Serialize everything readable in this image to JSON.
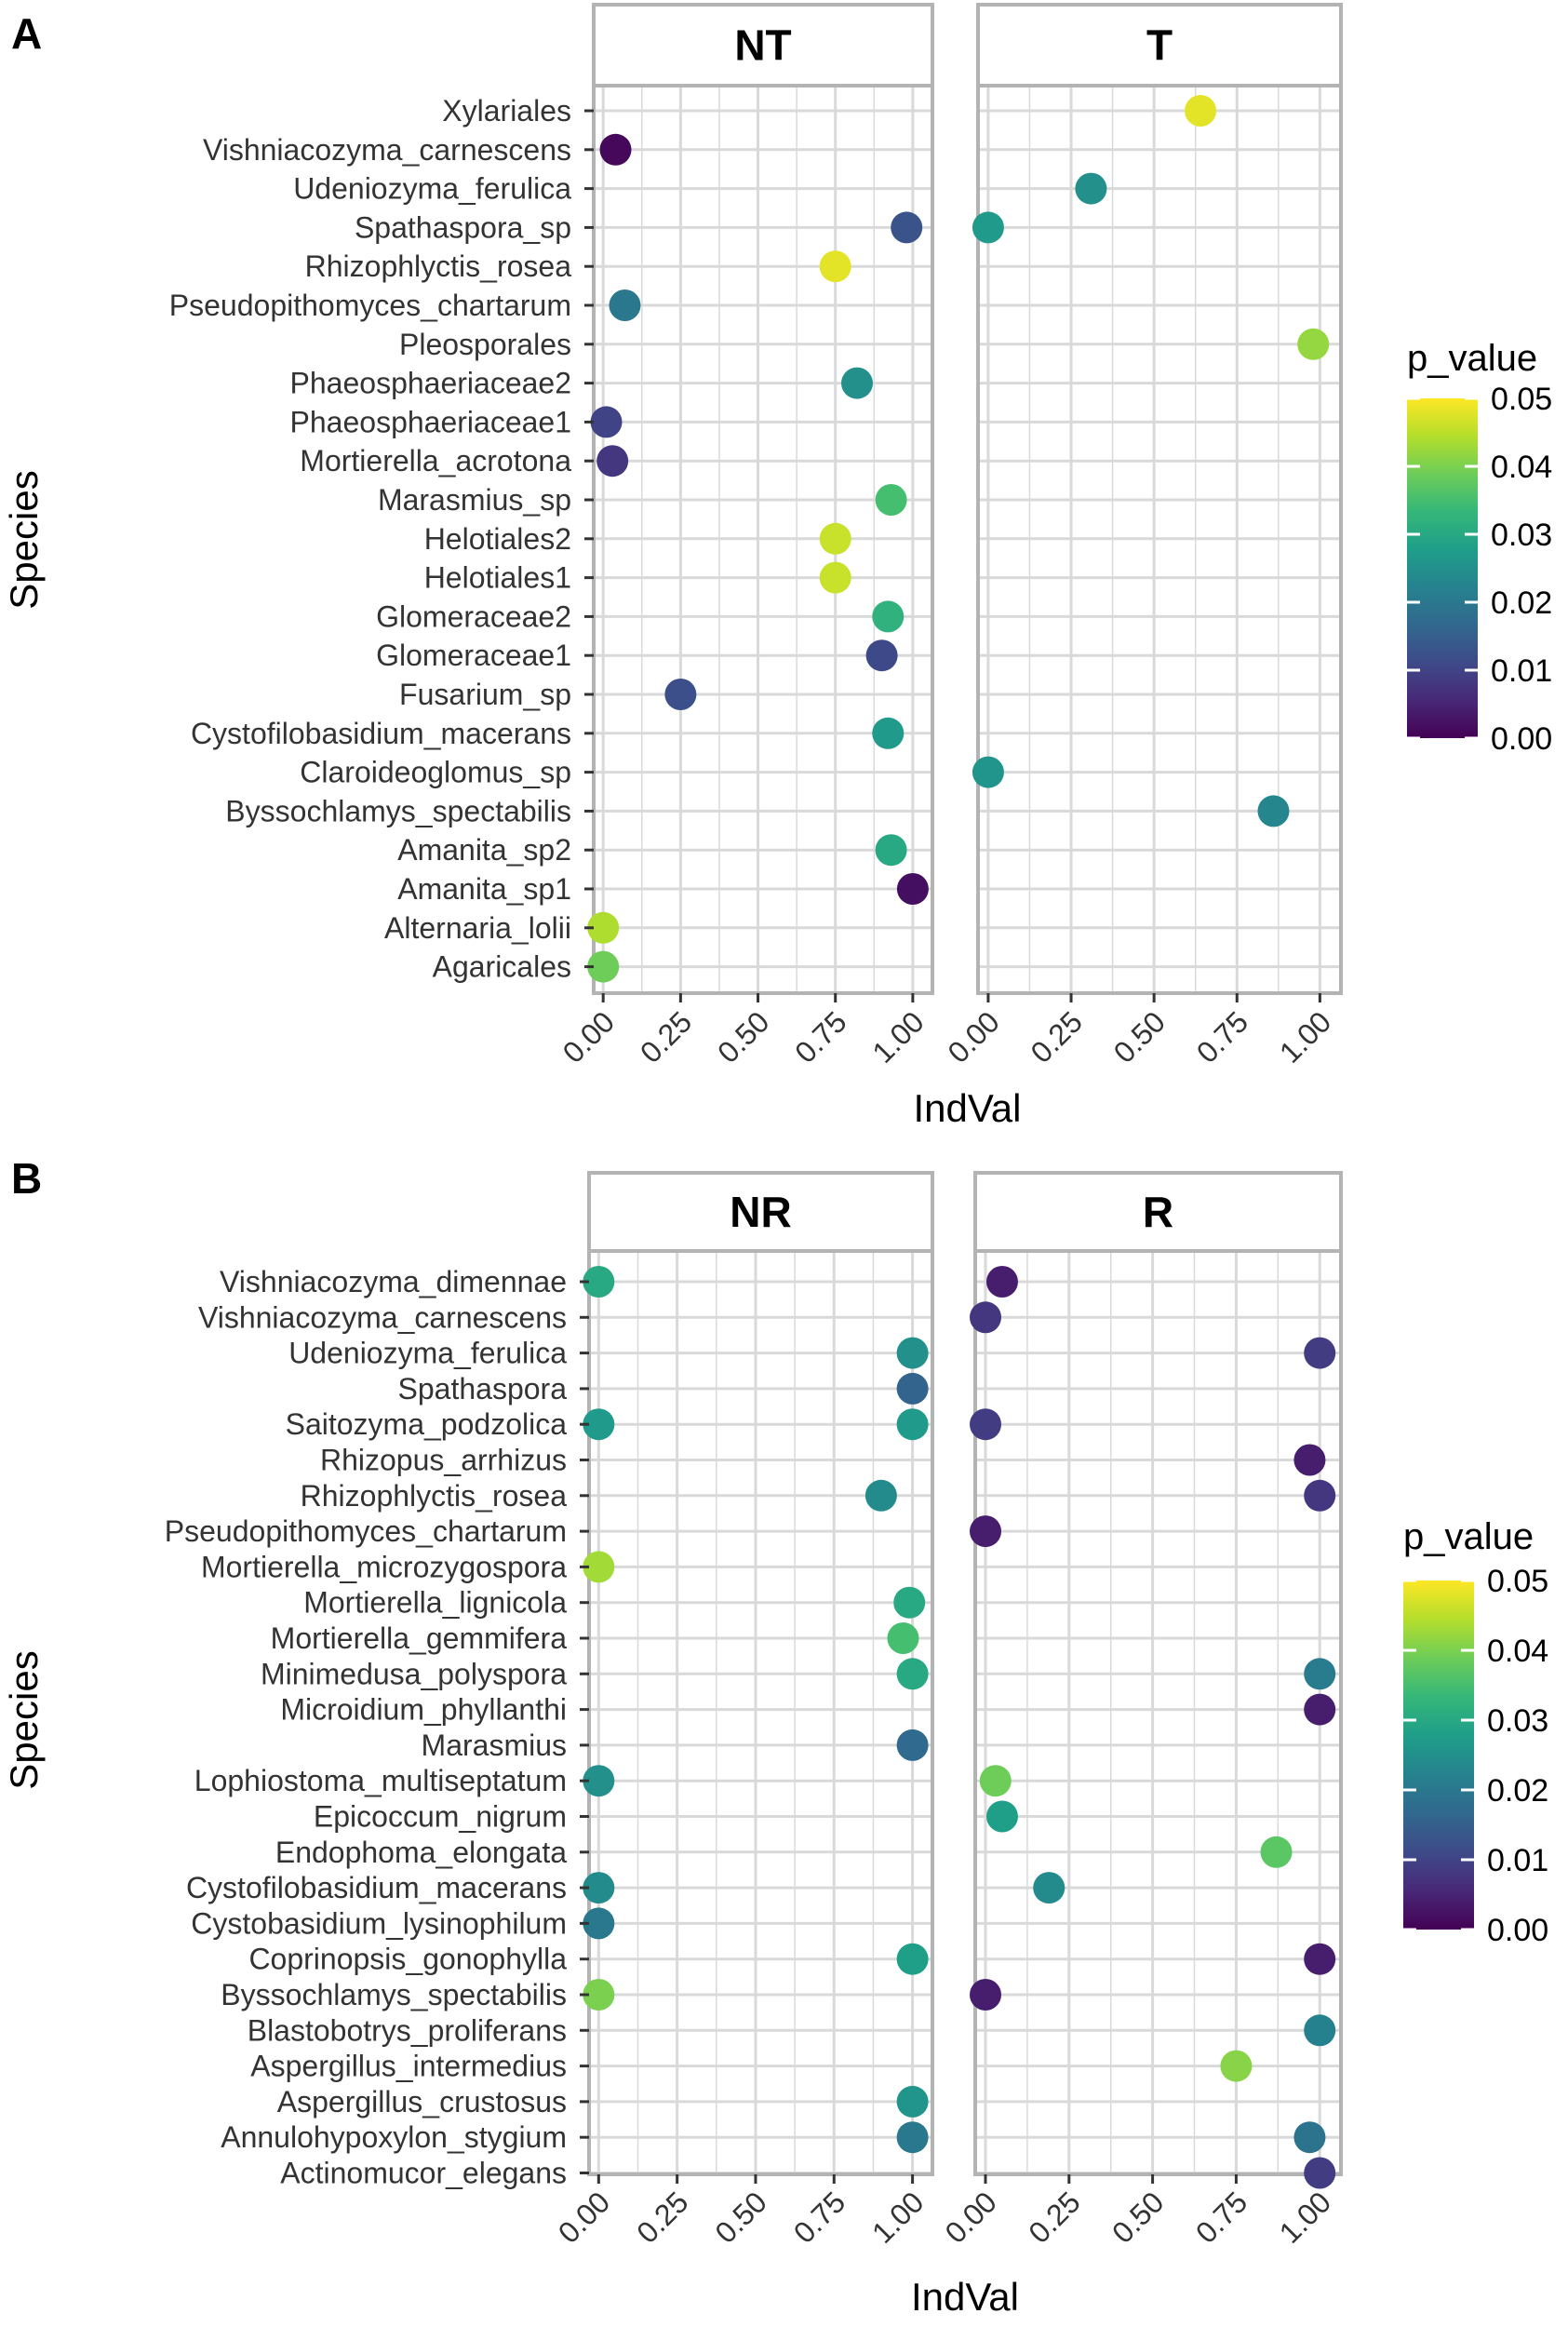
{
  "figure": {
    "domain": "Chart"
  },
  "colors": {
    "viridis": [
      "#440154",
      "#482878",
      "#3E4A89",
      "#31688E",
      "#26828E",
      "#1F9E89",
      "#35B779",
      "#6DCD59",
      "#B4DE2C",
      "#FDE725"
    ],
    "strip_fill": "#FFFFFF",
    "grid": "#D9D9D9",
    "panel_border": "#B3B3B3"
  },
  "chart_data": [
    {
      "panel_letter": "A",
      "type": "scatter",
      "facets": [
        "NT",
        "T"
      ],
      "xlabel": "IndVal",
      "ylabel": "Species",
      "xlim": [
        0,
        1
      ],
      "xticks": [
        "0.00",
        "0.25",
        "0.50",
        "0.75",
        "1.00"
      ],
      "legend": {
        "title": "p_value",
        "ticks": [
          "0.00",
          "0.01",
          "0.02",
          "0.03",
          "0.04",
          "0.05"
        ],
        "range": [
          0,
          0.05
        ]
      },
      "species": [
        "Xylariales",
        "Vishniacozyma_carnescens",
        "Udeniozyma_ferulica",
        "Spathaspora_sp",
        "Rhizophlyctis_rosea",
        "Pseudopithomyces_chartarum",
        "Pleosporales",
        "Phaeosphaeriaceae2",
        "Phaeosphaeriaceae1",
        "Mortierella_acrotona",
        "Marasmius_sp",
        "Helotiales2",
        "Helotiales1",
        "Glomeraceae2",
        "Glomeraceae1",
        "Fusarium_sp",
        "Cystofilobasidium_macerans",
        "Claroideoglomus_sp",
        "Byssochlamys_spectabilis",
        "Amanita_sp2",
        "Amanita_sp1",
        "Alternaria_lolii",
        "Agaricales"
      ],
      "points": [
        {
          "species": "Vishniacozyma_carnescens",
          "facet": "NT",
          "indval": 0.04,
          "p_value": 0.001
        },
        {
          "species": "Spathaspora_sp",
          "facet": "NT",
          "indval": 0.98,
          "p_value": 0.013
        },
        {
          "species": "Rhizophlyctis_rosea",
          "facet": "NT",
          "indval": 0.75,
          "p_value": 0.048
        },
        {
          "species": "Pseudopithomyces_chartarum",
          "facet": "NT",
          "indval": 0.07,
          "p_value": 0.02
        },
        {
          "species": "Phaeosphaeriaceae2",
          "facet": "NT",
          "indval": 0.82,
          "p_value": 0.025
        },
        {
          "species": "Phaeosphaeriaceae1",
          "facet": "NT",
          "indval": 0.01,
          "p_value": 0.01
        },
        {
          "species": "Mortierella_acrotona",
          "facet": "NT",
          "indval": 0.03,
          "p_value": 0.008
        },
        {
          "species": "Marasmius_sp",
          "facet": "NT",
          "indval": 0.93,
          "p_value": 0.035
        },
        {
          "species": "Helotiales2",
          "facet": "NT",
          "indval": 0.75,
          "p_value": 0.046
        },
        {
          "species": "Helotiales1",
          "facet": "NT",
          "indval": 0.75,
          "p_value": 0.046
        },
        {
          "species": "Glomeraceae2",
          "facet": "NT",
          "indval": 0.92,
          "p_value": 0.032
        },
        {
          "species": "Glomeraceae1",
          "facet": "NT",
          "indval": 0.9,
          "p_value": 0.011
        },
        {
          "species": "Fusarium_sp",
          "facet": "NT",
          "indval": 0.25,
          "p_value": 0.012
        },
        {
          "species": "Cystofilobasidium_macerans",
          "facet": "NT",
          "indval": 0.92,
          "p_value": 0.027
        },
        {
          "species": "Amanita_sp2",
          "facet": "NT",
          "indval": 0.93,
          "p_value": 0.03
        },
        {
          "species": "Amanita_sp1",
          "facet": "NT",
          "indval": 1.0,
          "p_value": 0.002
        },
        {
          "species": "Alternaria_lolii",
          "facet": "NT",
          "indval": 0.0,
          "p_value": 0.044
        },
        {
          "species": "Agaricales",
          "facet": "NT",
          "indval": 0.0,
          "p_value": 0.039
        },
        {
          "species": "Xylariales",
          "facet": "T",
          "indval": 0.64,
          "p_value": 0.048
        },
        {
          "species": "Udeniozyma_ferulica",
          "facet": "T",
          "indval": 0.31,
          "p_value": 0.025
        },
        {
          "species": "Spathaspora_sp",
          "facet": "T",
          "indval": 0.0,
          "p_value": 0.027
        },
        {
          "species": "Pleosporales",
          "facet": "T",
          "indval": 0.98,
          "p_value": 0.042
        },
        {
          "species": "Claroideoglomus_sp",
          "facet": "T",
          "indval": 0.0,
          "p_value": 0.026
        },
        {
          "species": "Byssochlamys_spectabilis",
          "facet": "T",
          "indval": 0.86,
          "p_value": 0.023
        }
      ]
    },
    {
      "panel_letter": "B",
      "type": "scatter",
      "facets": [
        "NR",
        "R"
      ],
      "xlabel": "IndVal",
      "ylabel": "Species",
      "xlim": [
        0,
        1
      ],
      "xticks": [
        "0.00",
        "0.25",
        "0.50",
        "0.75",
        "1.00"
      ],
      "legend": {
        "title": "p_value",
        "ticks": [
          "0.00",
          "0.01",
          "0.02",
          "0.03",
          "0.04",
          "0.05"
        ],
        "range": [
          0,
          0.05
        ]
      },
      "species": [
        "Vishniacozyma_dimennae",
        "Vishniacozyma_carnescens",
        "Udeniozyma_ferulica",
        "Spathaspora",
        "Saitozyma_podzolica",
        "Rhizopus_arrhizus",
        "Rhizophlyctis_rosea",
        "Pseudopithomyces_chartarum",
        "Mortierella_microzygospora",
        "Mortierella_lignicola",
        "Mortierella_gemmifera",
        "Minimedusa_polyspora",
        "Microidium_phyllanthi",
        "Marasmius",
        "Lophiostoma_multiseptatum",
        "Epicoccum_nigrum",
        "Endophoma_elongata",
        "Cystofilobasidium_macerans",
        "Cystobasidium_lysinophilum",
        "Coprinopsis_gonophylla",
        "Byssochlamys_spectabilis",
        "Blastobotrys_proliferans",
        "Aspergillus_intermedius",
        "Aspergillus_crustosus",
        "Annulohypoxylon_stygium",
        "Actinomucor_elegans"
      ],
      "points": [
        {
          "species": "Vishniacozyma_dimennae",
          "facet": "NR",
          "indval": 0.0,
          "p_value": 0.03
        },
        {
          "species": "Udeniozyma_ferulica",
          "facet": "NR",
          "indval": 1.0,
          "p_value": 0.025
        },
        {
          "species": "Spathaspora",
          "facet": "NR",
          "indval": 1.0,
          "p_value": 0.016
        },
        {
          "species": "Saitozyma_podzolica",
          "facet": "NR",
          "indval": 0.0,
          "p_value": 0.027
        },
        {
          "species": "Saitozyma_podzolica",
          "facet": "NR",
          "indval": 1.0,
          "p_value": 0.027
        },
        {
          "species": "Rhizophlyctis_rosea",
          "facet": "NR",
          "indval": 0.9,
          "p_value": 0.024
        },
        {
          "species": "Mortierella_microzygospora",
          "facet": "NR",
          "indval": 0.0,
          "p_value": 0.043
        },
        {
          "species": "Mortierella_lignicola",
          "facet": "NR",
          "indval": 0.99,
          "p_value": 0.03
        },
        {
          "species": "Mortierella_gemmifera",
          "facet": "NR",
          "indval": 0.97,
          "p_value": 0.035
        },
        {
          "species": "Minimedusa_polyspora",
          "facet": "NR",
          "indval": 1.0,
          "p_value": 0.03
        },
        {
          "species": "Marasmius",
          "facet": "NR",
          "indval": 1.0,
          "p_value": 0.017
        },
        {
          "species": "Lophiostoma_multiseptatum",
          "facet": "NR",
          "indval": 0.0,
          "p_value": 0.025
        },
        {
          "species": "Cystofilobasidium_macerans",
          "facet": "NR",
          "indval": 0.0,
          "p_value": 0.024
        },
        {
          "species": "Cystobasidium_lysinophilum",
          "facet": "NR",
          "indval": 0.0,
          "p_value": 0.02
        },
        {
          "species": "Coprinopsis_gonophylla",
          "facet": "NR",
          "indval": 1.0,
          "p_value": 0.028
        },
        {
          "species": "Byssochlamys_spectabilis",
          "facet": "NR",
          "indval": 0.0,
          "p_value": 0.04
        },
        {
          "species": "Aspergillus_crustosus",
          "facet": "NR",
          "indval": 1.0,
          "p_value": 0.026
        },
        {
          "species": "Annulohypoxylon_stygium",
          "facet": "NR",
          "indval": 1.0,
          "p_value": 0.02
        },
        {
          "species": "Vishniacozyma_dimennae",
          "facet": "R",
          "indval": 0.05,
          "p_value": 0.004
        },
        {
          "species": "Vishniacozyma_carnescens",
          "facet": "R",
          "indval": 0.0,
          "p_value": 0.008
        },
        {
          "species": "Udeniozyma_ferulica",
          "facet": "R",
          "indval": 1.0,
          "p_value": 0.009
        },
        {
          "species": "Saitozyma_podzolica",
          "facet": "R",
          "indval": 0.0,
          "p_value": 0.009
        },
        {
          "species": "Rhizopus_arrhizus",
          "facet": "R",
          "indval": 0.97,
          "p_value": 0.004
        },
        {
          "species": "Rhizophlyctis_rosea",
          "facet": "R",
          "indval": 1.0,
          "p_value": 0.008
        },
        {
          "species": "Pseudopithomyces_chartarum",
          "facet": "R",
          "indval": 0.0,
          "p_value": 0.004
        },
        {
          "species": "Minimedusa_polyspora",
          "facet": "R",
          "indval": 1.0,
          "p_value": 0.021
        },
        {
          "species": "Microidium_phyllanthi",
          "facet": "R",
          "indval": 1.0,
          "p_value": 0.004
        },
        {
          "species": "Lophiostoma_multiseptatum",
          "facet": "R",
          "indval": 0.03,
          "p_value": 0.039
        },
        {
          "species": "Epicoccum_nigrum",
          "facet": "R",
          "indval": 0.05,
          "p_value": 0.028
        },
        {
          "species": "Endophoma_elongata",
          "facet": "R",
          "indval": 0.87,
          "p_value": 0.037
        },
        {
          "species": "Cystofilobasidium_macerans",
          "facet": "R",
          "indval": 0.19,
          "p_value": 0.024
        },
        {
          "species": "Coprinopsis_gonophylla",
          "facet": "R",
          "indval": 1.0,
          "p_value": 0.004
        },
        {
          "species": "Byssochlamys_spectabilis",
          "facet": "R",
          "indval": 0.0,
          "p_value": 0.004
        },
        {
          "species": "Blastobotrys_proliferans",
          "facet": "R",
          "indval": 1.0,
          "p_value": 0.022
        },
        {
          "species": "Aspergillus_intermedius",
          "facet": "R",
          "indval": 0.75,
          "p_value": 0.041
        },
        {
          "species": "Annulohypoxylon_stygium",
          "facet": "R",
          "indval": 0.97,
          "p_value": 0.019
        },
        {
          "species": "Actinomucor_elegans",
          "facet": "R",
          "indval": 1.0,
          "p_value": 0.009
        }
      ]
    }
  ]
}
